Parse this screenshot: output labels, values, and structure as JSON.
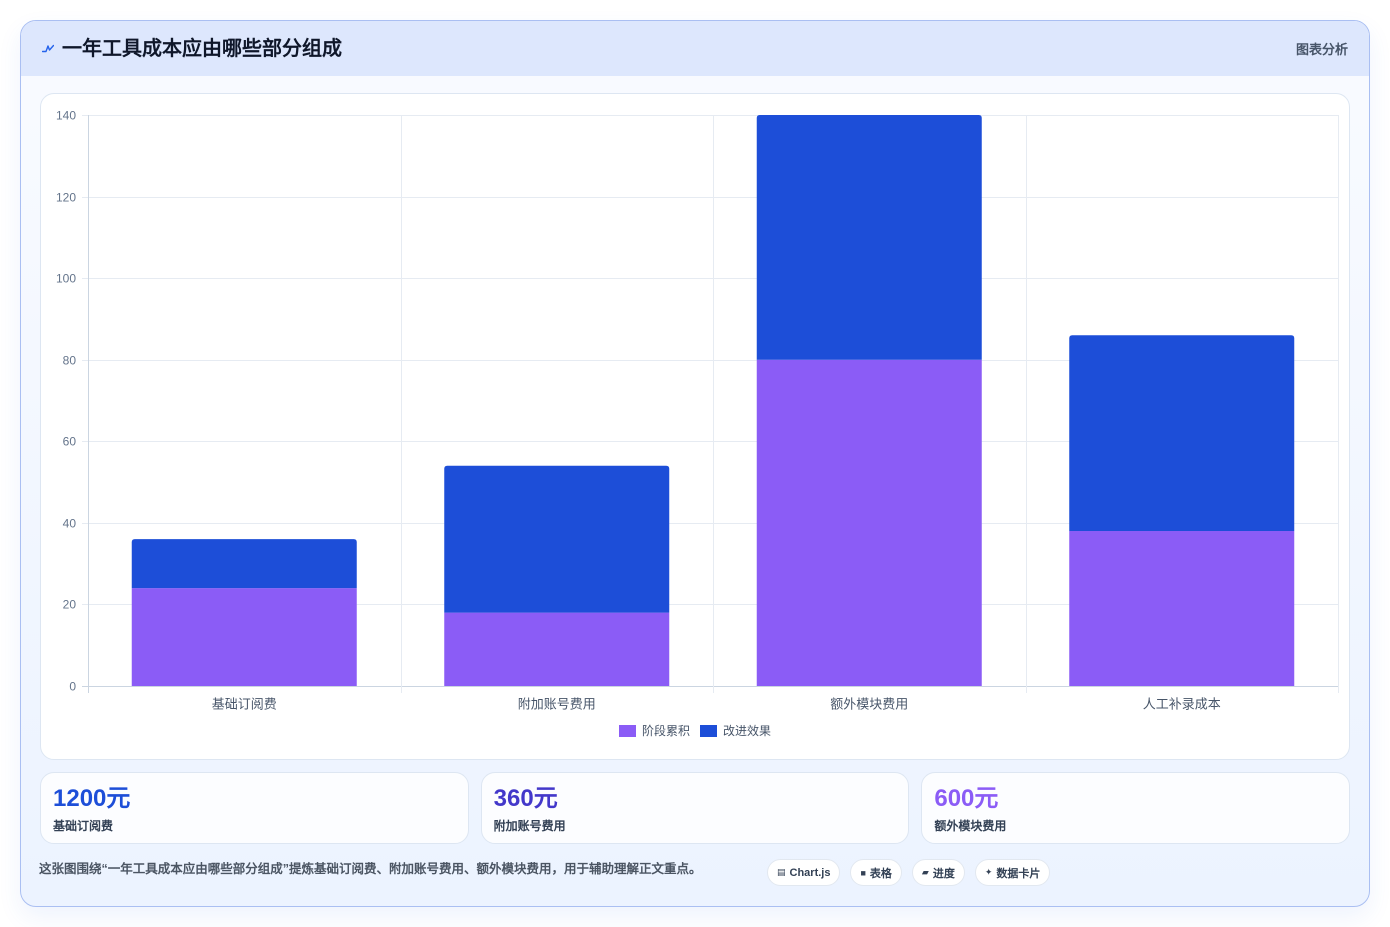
{
  "header": {
    "icon": "trend-line-icon",
    "title": "一年工具成本应由哪些部分组成",
    "tag": "图表分析"
  },
  "chart_data": {
    "type": "bar",
    "stacked": true,
    "categories": [
      "基础订阅费",
      "附加账号费用",
      "额外模块费用",
      "人工补录成本"
    ],
    "series": [
      {
        "name": "阶段累积",
        "values": [
          24,
          18,
          80,
          38
        ],
        "color": "#8b5cf6"
      },
      {
        "name": "改进效果",
        "values": [
          12,
          36,
          60,
          48
        ],
        "color": "#1d4ed8"
      }
    ],
    "ylim": [
      0,
      140
    ],
    "yticks": [
      0,
      20,
      40,
      60,
      80,
      100,
      120,
      140
    ],
    "grid": true,
    "legend": "bottom-center"
  },
  "stats": [
    {
      "value": "1200元",
      "label": "基础订阅费",
      "color": "#1d4ed8"
    },
    {
      "value": "360元",
      "label": "附加账号费用",
      "color": "#4338ca"
    },
    {
      "value": "600元",
      "label": "额外模块费用",
      "color": "#8b5cf6"
    }
  ],
  "footer": {
    "note": "这张图围绕“一年工具成本应由哪些部分组成”提炼基础订阅费、附加账号费用、额外模块费用，用于辅助理解正文重点。",
    "chips": [
      {
        "icon": "chart-icon",
        "label": "Chart.js"
      },
      {
        "icon": "table-icon",
        "label": "表格"
      },
      {
        "icon": "progress-icon",
        "label": "进度"
      },
      {
        "icon": "sparkle-icon",
        "label": "数据卡片"
      }
    ]
  },
  "colors": {
    "accent": "#1d4ed8",
    "header_bg": "#dde7fd",
    "card_border": "#aabff2"
  }
}
